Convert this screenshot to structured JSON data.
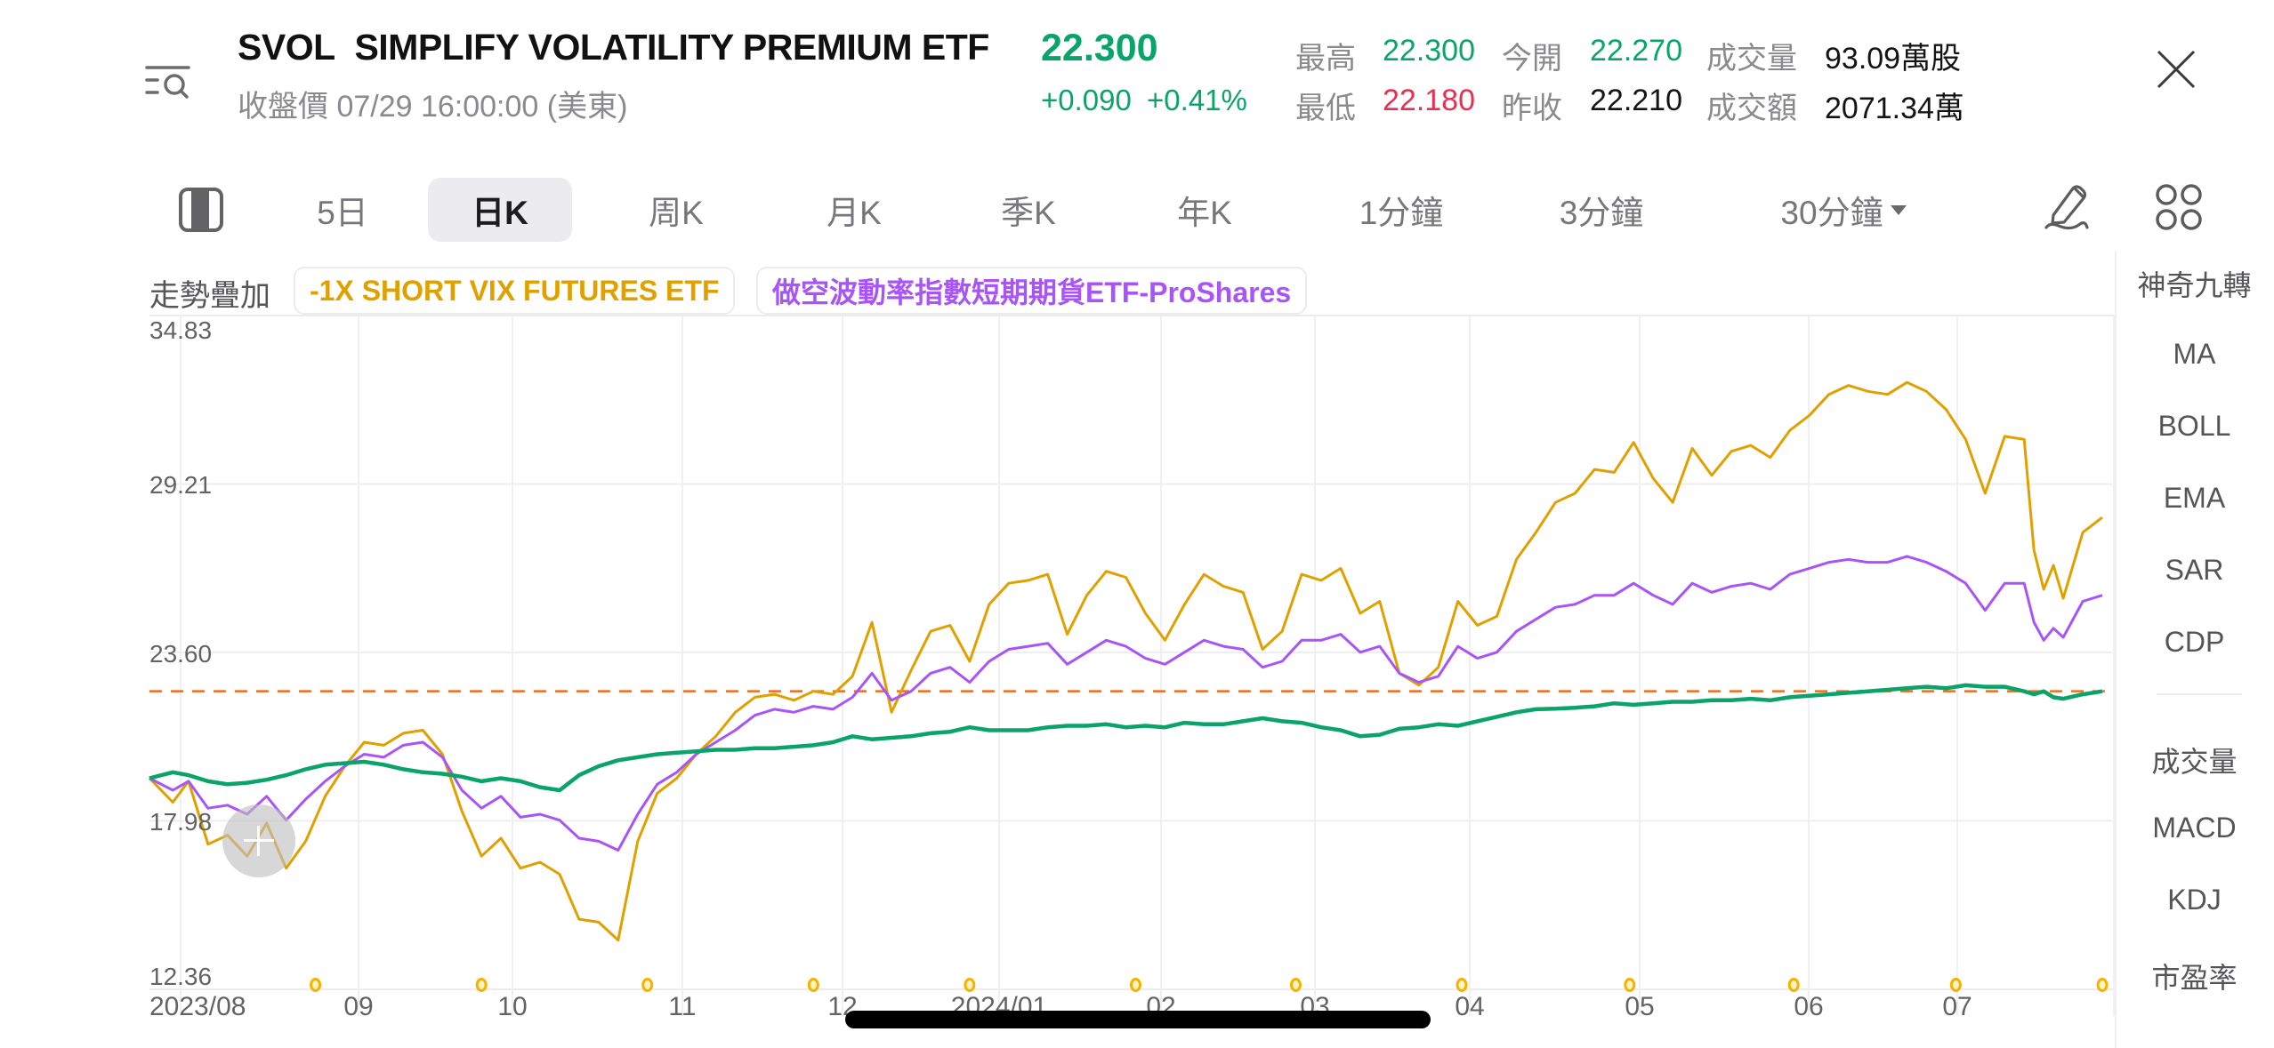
{
  "header": {
    "ticker": "SVOL",
    "name": "SIMPLIFY VOLATILITY PREMIUM ETF",
    "price": "22.300",
    "status_line": "收盤價 07/29 16:00:00 (美東)",
    "change": "+0.090",
    "change_pct": "+0.41%",
    "stats": {
      "high_label": "最高",
      "high": "22.300",
      "open_label": "今開",
      "open": "22.270",
      "volume_label": "成交量",
      "volume": "93.09萬股",
      "low_label": "最低",
      "low": "22.180",
      "prev_close_label": "昨收",
      "prev_close": "22.210",
      "turnover_label": "成交額",
      "turnover": "2071.34萬"
    },
    "icons": {
      "menu": "menu-search-icon",
      "close": "close-icon"
    }
  },
  "tabs": {
    "items": [
      {
        "label": "5日"
      },
      {
        "label": "日K",
        "active": true
      },
      {
        "label": "周K"
      },
      {
        "label": "月K"
      },
      {
        "label": "季K"
      },
      {
        "label": "年K"
      },
      {
        "label": "1分鐘"
      },
      {
        "label": "3分鐘"
      },
      {
        "label": "30分鐘"
      }
    ],
    "icons": {
      "layout_toggle": "layout-toggle-icon",
      "draw": "pencil-icon",
      "more": "grid-icon"
    }
  },
  "overlay": {
    "label": "走勢疊加",
    "chips": [
      {
        "label": "-1X SHORT VIX FUTURES ETF",
        "color": "#e0a100"
      },
      {
        "label": "做空波動率指數短期期貨ETF-ProShares",
        "color": "#a855f7"
      }
    ]
  },
  "indicators": {
    "main": [
      "神奇九轉",
      "MA",
      "BOLL",
      "EMA",
      "SAR",
      "CDP"
    ],
    "sub": [
      "成交量",
      "MACD",
      "KDJ",
      "市盈率"
    ]
  },
  "chart_data": {
    "type": "line",
    "title": "SVOL 日K 走勢疊加",
    "xlabel": "",
    "ylabel": "",
    "ylim": [
      12.36,
      34.83
    ],
    "y_ticks": [
      "34.83",
      "29.21",
      "23.60",
      "17.98",
      "12.36"
    ],
    "x_ticks": [
      "2023/08",
      "09",
      "10",
      "11",
      "12",
      "2024/01",
      "02",
      "03",
      "04",
      "05",
      "06",
      "07"
    ],
    "grid": true,
    "reference_line": {
      "value": 22.3,
      "style": "dashed",
      "color": "#f26b1d"
    },
    "colors": {
      "SVOL": "#0aa46b",
      "SVIX": "#e0a100",
      "SVXY": "#a855f7"
    },
    "x": [
      0,
      0.012,
      0.02,
      0.03,
      0.04,
      0.05,
      0.06,
      0.07,
      0.08,
      0.09,
      0.1,
      0.11,
      0.12,
      0.13,
      0.14,
      0.15,
      0.16,
      0.17,
      0.18,
      0.19,
      0.2,
      0.21,
      0.22,
      0.23,
      0.24,
      0.25,
      0.26,
      0.27,
      0.28,
      0.29,
      0.3,
      0.31,
      0.32,
      0.33,
      0.34,
      0.35,
      0.36,
      0.37,
      0.38,
      0.39,
      0.4,
      0.41,
      0.42,
      0.43,
      0.44,
      0.45,
      0.46,
      0.47,
      0.48,
      0.49,
      0.5,
      0.51,
      0.52,
      0.53,
      0.54,
      0.55,
      0.56,
      0.57,
      0.58,
      0.59,
      0.6,
      0.61,
      0.62,
      0.63,
      0.64,
      0.65,
      0.66,
      0.67,
      0.68,
      0.69,
      0.7,
      0.71,
      0.72,
      0.73,
      0.74,
      0.75,
      0.76,
      0.77,
      0.78,
      0.79,
      0.8,
      0.81,
      0.82,
      0.83,
      0.84,
      0.85,
      0.86,
      0.87,
      0.88,
      0.89,
      0.9,
      0.91,
      0.92,
      0.93,
      0.94,
      0.95,
      0.96,
      0.965,
      0.97,
      0.975,
      0.98,
      0.99,
      1.0
    ],
    "series": [
      {
        "name": "SVOL",
        "values": [
          19.4,
          19.6,
          19.5,
          19.3,
          19.2,
          19.25,
          19.35,
          19.5,
          19.7,
          19.85,
          19.9,
          19.95,
          19.85,
          19.7,
          19.6,
          19.55,
          19.45,
          19.3,
          19.4,
          19.3,
          19.1,
          19.0,
          19.5,
          19.8,
          20.0,
          20.1,
          20.2,
          20.25,
          20.3,
          20.35,
          20.35,
          20.4,
          20.4,
          20.45,
          20.5,
          20.6,
          20.8,
          20.7,
          20.75,
          20.8,
          20.9,
          20.95,
          21.1,
          21.0,
          21.0,
          21.0,
          21.1,
          21.15,
          21.15,
          21.2,
          21.1,
          21.15,
          21.1,
          21.25,
          21.2,
          21.2,
          21.3,
          21.4,
          21.3,
          21.25,
          21.1,
          21.0,
          20.8,
          20.85,
          21.05,
          21.1,
          21.2,
          21.15,
          21.3,
          21.45,
          21.6,
          21.7,
          21.72,
          21.75,
          21.8,
          21.9,
          21.85,
          21.9,
          21.95,
          21.95,
          22.0,
          22.0,
          22.05,
          22.0,
          22.1,
          22.15,
          22.2,
          22.25,
          22.3,
          22.35,
          22.4,
          22.45,
          22.4,
          22.5,
          22.45,
          22.45,
          22.3,
          22.2,
          22.3,
          22.1,
          22.05,
          22.2,
          22.3
        ]
      },
      {
        "name": "-1X SHORT VIX FUTURES ETF",
        "values": [
          19.4,
          18.6,
          19.3,
          17.2,
          17.5,
          16.8,
          17.9,
          16.4,
          17.3,
          18.8,
          19.8,
          20.6,
          20.5,
          20.9,
          21.0,
          20.2,
          18.3,
          16.8,
          17.4,
          16.4,
          16.6,
          16.2,
          14.7,
          14.6,
          14.0,
          17.3,
          18.9,
          19.4,
          20.2,
          20.8,
          21.6,
          22.1,
          22.2,
          22.0,
          22.3,
          22.2,
          22.8,
          24.6,
          21.6,
          23.0,
          24.3,
          24.5,
          23.3,
          25.2,
          25.9,
          26.0,
          26.2,
          24.2,
          25.5,
          26.3,
          26.1,
          24.9,
          24.0,
          25.2,
          26.2,
          25.8,
          25.6,
          23.7,
          24.3,
          26.2,
          26.0,
          26.4,
          24.9,
          25.3,
          22.9,
          22.5,
          23.1,
          25.3,
          24.5,
          24.8,
          26.7,
          27.6,
          28.6,
          28.9,
          29.7,
          29.6,
          30.6,
          29.4,
          28.6,
          30.4,
          29.5,
          30.3,
          30.5,
          30.1,
          31.0,
          31.5,
          32.2,
          32.5,
          32.3,
          32.2,
          32.6,
          32.3,
          31.7,
          30.7,
          28.9,
          30.8,
          30.7,
          27.0,
          25.7,
          26.5,
          25.4,
          27.6,
          28.1
        ]
      },
      {
        "name": "做空波動率指數短期期貨ETF-ProShares",
        "values": [
          19.4,
          19.0,
          19.3,
          18.4,
          18.5,
          18.2,
          18.8,
          18.0,
          18.7,
          19.3,
          19.8,
          20.2,
          20.1,
          20.5,
          20.6,
          20.1,
          19.0,
          18.4,
          18.8,
          18.1,
          18.2,
          18.0,
          17.4,
          17.3,
          17.0,
          18.2,
          19.2,
          19.6,
          20.2,
          20.6,
          21.0,
          21.5,
          21.7,
          21.6,
          21.8,
          21.7,
          22.1,
          22.9,
          22.0,
          22.3,
          22.9,
          23.1,
          22.6,
          23.3,
          23.7,
          23.8,
          23.9,
          23.2,
          23.6,
          24.0,
          23.8,
          23.4,
          23.2,
          23.6,
          24.0,
          23.8,
          23.7,
          23.1,
          23.3,
          24.0,
          24.0,
          24.2,
          23.6,
          23.8,
          22.9,
          22.6,
          22.8,
          23.8,
          23.4,
          23.6,
          24.3,
          24.7,
          25.1,
          25.2,
          25.5,
          25.5,
          25.9,
          25.5,
          25.2,
          25.9,
          25.6,
          25.8,
          25.9,
          25.7,
          26.2,
          26.4,
          26.6,
          26.7,
          26.6,
          26.6,
          26.8,
          26.6,
          26.3,
          25.9,
          25.0,
          25.9,
          25.9,
          24.6,
          24.0,
          24.4,
          24.1,
          25.3,
          25.5
        ]
      }
    ]
  },
  "dividend_markers": [
    0.085,
    0.17,
    0.255,
    0.34,
    0.42,
    0.505,
    0.587,
    0.672,
    0.758,
    0.842,
    0.925,
    1.0
  ]
}
